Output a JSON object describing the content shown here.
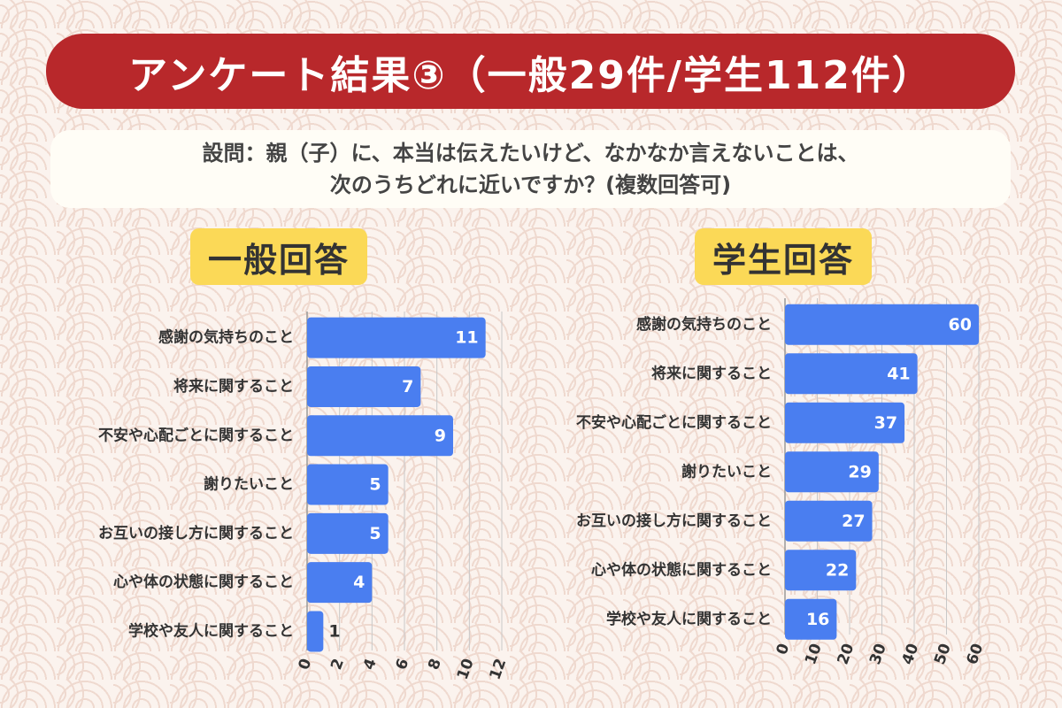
{
  "header": {
    "title": "アンケート結果③（一般29件/学生112件）"
  },
  "question": {
    "line1": "設問：親（子）に、本当は伝えたいけど、なかなか言えないことは、",
    "line2": "次のうちどれに近いですか？(複数回答可)"
  },
  "colors": {
    "bar": "#4a7ef0",
    "title_bg": "#b8282b",
    "label_bg": "#fbd957",
    "grid": "#c8c8c8"
  },
  "chart_data": [
    {
      "type": "bar",
      "orientation": "horizontal",
      "title": "一般回答",
      "categories": [
        "感謝の気持ちのこと",
        "将来に関すること",
        "不安や心配ごとに関すること",
        "謝りたいこと",
        "お互いの接し方に関すること",
        "心や体の状態に関すること",
        "学校や友人に関すること"
      ],
      "values": [
        11,
        7,
        9,
        5,
        5,
        4,
        1
      ],
      "xlim": [
        0,
        12
      ],
      "ticks": [
        0,
        2,
        4,
        6,
        8,
        10,
        12
      ],
      "grid": true
    },
    {
      "type": "bar",
      "orientation": "horizontal",
      "title": "学生回答",
      "categories": [
        "感謝の気持ちのこと",
        "将来に関すること",
        "不安や心配ごとに関すること",
        "謝りたいこと",
        "お互いの接し方に関すること",
        "心や体の状態に関すること",
        "学校や友人に関すること"
      ],
      "values": [
        60,
        41,
        37,
        29,
        27,
        22,
        16
      ],
      "xlim": [
        0,
        60
      ],
      "ticks": [
        0,
        10,
        20,
        30,
        40,
        50,
        60
      ],
      "grid": true
    }
  ]
}
